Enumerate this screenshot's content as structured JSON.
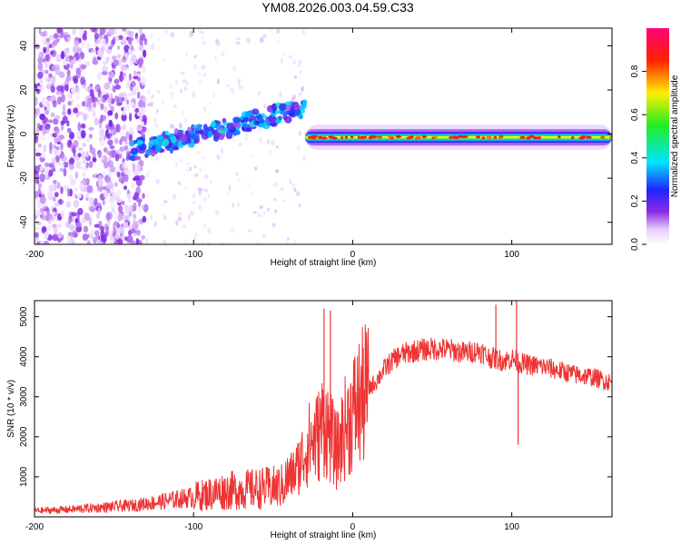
{
  "chart_data": [
    {
      "type": "heatmap",
      "title": "YM08.2026.003.04.59.C33",
      "xlabel": "Height of straight line (km)",
      "ylabel": "Frequency (Hz)",
      "xlim": [
        -200,
        163
      ],
      "ylim": [
        -50,
        48
      ],
      "xticks": [
        "-200",
        "-100",
        "0",
        "100"
      ],
      "yticks": [
        "40",
        "20",
        "0",
        "-20",
        "-40"
      ],
      "colorbar": {
        "label": "Normalized spectral amplitude",
        "range": [
          0,
          1
        ],
        "ticks": [
          "0.0",
          "0.2",
          "0.4",
          "0.6",
          "0.8"
        ]
      },
      "features": [
        {
          "name": "broadband noise",
          "x_range": [
            -200,
            -130
          ],
          "y_range": [
            -50,
            48
          ],
          "level": 0.25
        },
        {
          "name": "sparse noise",
          "x_range": [
            -130,
            -30
          ],
          "y_range": [
            -50,
            48
          ],
          "level": 0.1
        },
        {
          "name": "rising tone",
          "x_start": -140,
          "y_start": -8,
          "x_end": -30,
          "y_end": 12,
          "level": 0.35
        },
        {
          "name": "steady tone",
          "x_start": -30,
          "y_start": -2,
          "x_end": 163,
          "y_end": -1,
          "level": 0.7
        }
      ]
    },
    {
      "type": "line",
      "xlabel": "Height of straight line (km)",
      "ylabel": "SNR (10 * v/v)",
      "xlim": [
        -200,
        163
      ],
      "ylim": [
        0,
        5400
      ],
      "xticks": [
        "-200",
        "-100",
        "0",
        "100"
      ],
      "yticks": [
        "5000",
        "4000",
        "3000",
        "2000",
        "1000"
      ],
      "series": [
        {
          "name": "SNR",
          "color": "#ee3333",
          "x": [
            -200,
            -180,
            -160,
            -140,
            -120,
            -100,
            -80,
            -60,
            -45,
            -35,
            -28,
            -22,
            -18,
            -10,
            -5,
            0,
            5,
            10,
            15,
            20,
            25,
            30,
            40,
            50,
            60,
            70,
            80,
            85,
            90,
            95,
            100,
            103,
            105,
            110,
            120,
            130,
            140,
            150,
            163
          ],
          "y": [
            150,
            180,
            230,
            280,
            380,
            500,
            650,
            700,
            750,
            1200,
            1800,
            2000,
            2400,
            1600,
            2200,
            2600,
            2900,
            3200,
            3400,
            3700,
            3900,
            4050,
            4150,
            4200,
            4180,
            4100,
            4150,
            4000,
            3950,
            3900,
            3950,
            3900,
            3850,
            3800,
            3750,
            3650,
            3550,
            3500,
            3350
          ]
        }
      ],
      "spikes": [
        {
          "x": -18,
          "y": 5200
        },
        {
          "x": -14,
          "y": 5150
        },
        {
          "x": 90,
          "y": 5300
        },
        {
          "x": 103,
          "y": 5400
        },
        {
          "x": 104,
          "y": 1800
        }
      ]
    }
  ]
}
